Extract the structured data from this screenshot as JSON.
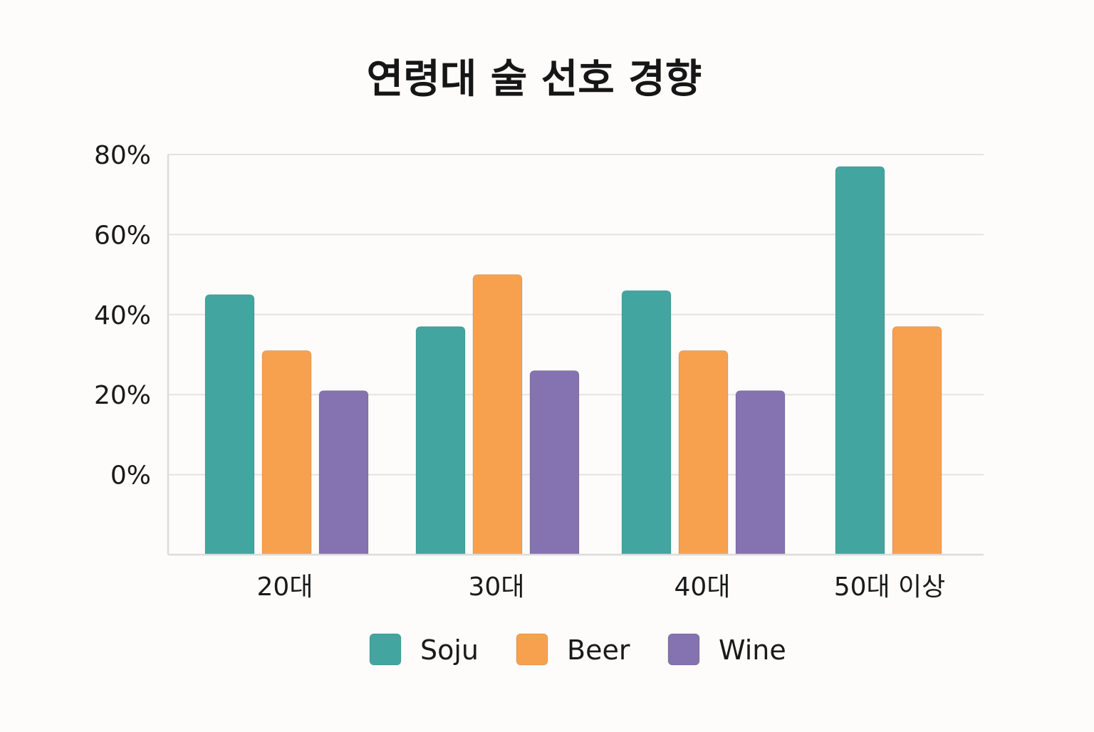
{
  "chart_data": {
    "type": "bar",
    "title": "연령대 술 선호 경향",
    "xlabel": "",
    "ylabel": "",
    "categories": [
      "20대",
      "30대",
      "40대",
      "50대 이상"
    ],
    "y_ticks": [
      "80%",
      "60%",
      "40%",
      "20%",
      "0%"
    ],
    "y_tick_values": [
      80,
      60,
      40,
      20,
      0
    ],
    "ylim": [
      -20,
      80
    ],
    "grid": true,
    "legend_position": "bottom",
    "series": [
      {
        "name": "Soju",
        "color": "#42a59f",
        "values": [
          45,
          37,
          46,
          77
        ]
      },
      {
        "name": "Beer",
        "color": "#f7a14f",
        "values": [
          31,
          50,
          31,
          37
        ]
      },
      {
        "name": "Wine",
        "color": "#8473b0",
        "values": [
          21,
          26,
          21,
          null
        ]
      }
    ]
  }
}
